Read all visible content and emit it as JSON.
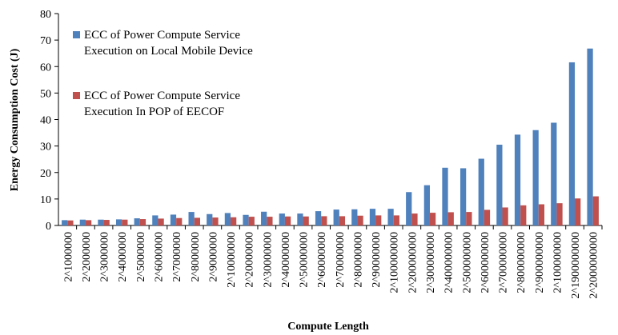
{
  "chart_data": {
    "type": "bar",
    "x_label": "Compute Length",
    "y_label": "Energy Consumption Cost (J)",
    "categories": [
      "2^1000000",
      "2^2000000",
      "2^3000000",
      "2^4000000",
      "2^5000000",
      "2^6000000",
      "2^7000000",
      "2^8000000",
      "2^9000000",
      "2^10000000",
      "2^20000000",
      "2^30000000",
      "2^40000000",
      "2^50000000",
      "2^60000000",
      "2^70000000",
      "2^80000000",
      "2^90000000",
      "2^100000000",
      "2^200000000",
      "2^300000000",
      "2^400000000",
      "2^500000000",
      "2^600000000",
      "2^700000000",
      "2^800000000",
      "2^900000000",
      "2^100000000",
      "2^1900000000",
      "2^2000000000"
    ],
    "series": [
      {
        "name": "ECC of Power Compute Service Execution on Local Mobile Device",
        "color": "#4f81bd",
        "values": [
          2,
          2.2,
          2.2,
          2.3,
          2.7,
          3.8,
          4.1,
          5.1,
          4.3,
          4.7,
          4,
          5.2,
          4.5,
          4.5,
          5.4,
          6,
          6.1,
          6.3,
          6.3,
          12.6,
          15.2,
          21.8,
          21.6,
          25.2,
          30.5,
          34.3,
          36,
          38.8,
          61.6,
          66.8
        ]
      },
      {
        "name": "ECC of Power Compute Service Execution In POP of EECOF",
        "color": "#c0504d",
        "values": [
          1.9,
          2,
          2.1,
          2.2,
          2.4,
          2.6,
          2.8,
          2.9,
          3,
          3.1,
          3.3,
          3.3,
          3.4,
          3.4,
          3.5,
          3.5,
          3.7,
          3.8,
          3.8,
          4.5,
          4.8,
          5,
          5.1,
          5.9,
          6.8,
          7.6,
          8,
          8.4,
          10.2,
          11
        ]
      }
    ],
    "ylim": [
      0,
      80
    ],
    "yticks": [
      0,
      10,
      20,
      30,
      40,
      50,
      60,
      70,
      80
    ],
    "legend": "upper left"
  }
}
